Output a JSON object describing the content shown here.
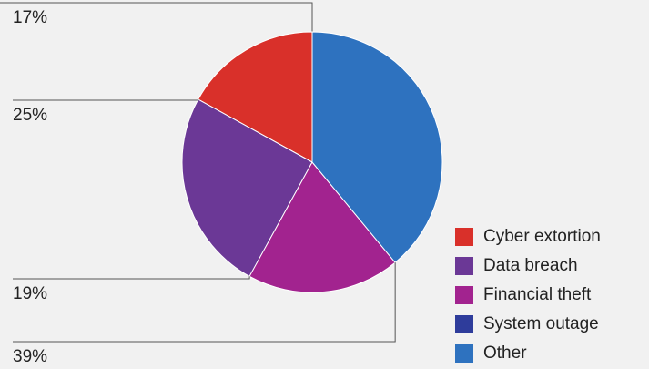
{
  "chart_data": {
    "type": "pie",
    "categories": [
      "Cyber extortion",
      "Data breach",
      "Financial theft",
      "System outage",
      "Other"
    ],
    "values": [
      17,
      25,
      19,
      0,
      39
    ],
    "value_labels": [
      "17%",
      "25%",
      "19%",
      null,
      "39%"
    ],
    "colors": [
      "#d9302a",
      "#6b3896",
      "#a2238f",
      "#2e3c9b",
      "#2e72bf"
    ],
    "legend": "lower right"
  }
}
